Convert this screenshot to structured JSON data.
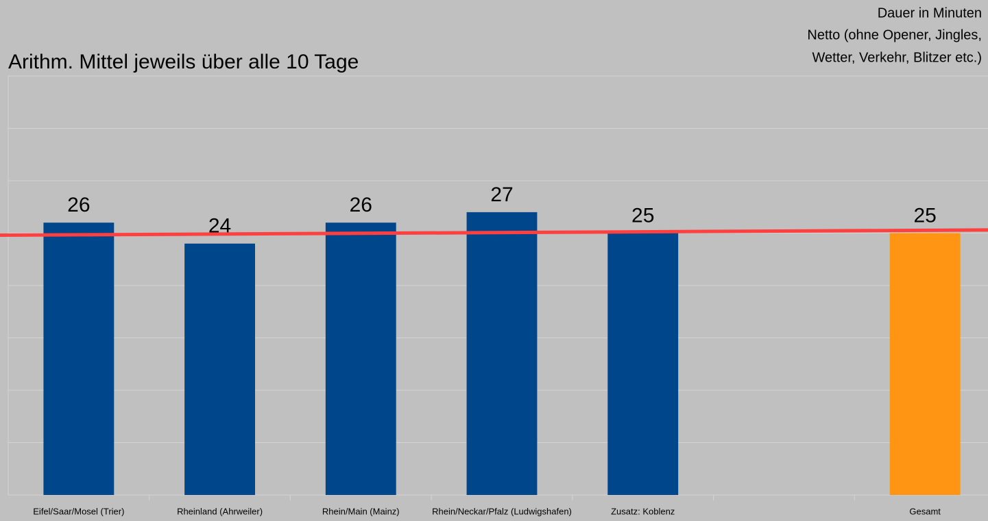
{
  "chart_data": {
    "type": "bar",
    "title": "Arithm. Mittel jeweils über alle 10 Tage",
    "subtitle": [
      "Dauer in Minuten",
      "Netto (ohne Opener, Jingles,",
      "Wetter, Verkehr, Blitzer etc.)"
    ],
    "categories": [
      "Eifel/Saar/Mosel (Trier)",
      "Rheinland (Ahrweiler)",
      "Rhein/Main (Mainz)",
      "Rhein/Neckar/Pfalz (Ludwigshafen)",
      "Zusatz: Koblenz",
      null,
      "Gesamt"
    ],
    "values": [
      26,
      24,
      26,
      27,
      25,
      null,
      25
    ],
    "colors": [
      "#00468b",
      "#00468b",
      "#00468b",
      "#00468b",
      "#00468b",
      null,
      "#ff9512"
    ],
    "ylim": [
      0,
      40
    ],
    "yticks": [
      0,
      5,
      10,
      15,
      20,
      25,
      30,
      35,
      40
    ],
    "grid": true,
    "trend_line": {
      "values": [
        24.8,
        25.3
      ],
      "color": "#ff4040"
    }
  }
}
